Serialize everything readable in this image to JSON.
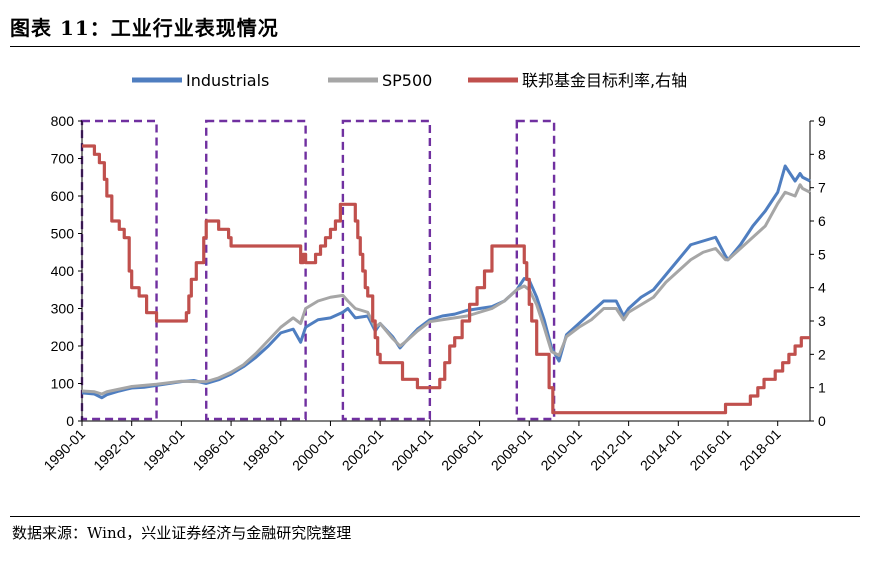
{
  "figure": {
    "title": "图表 11：工业行业表现情况",
    "source": "数据来源：Wind，兴业证券经济与金融研究院整理"
  },
  "chart_data": {
    "type": "line",
    "legend_position": "top",
    "grid": false,
    "x_range": [
      1990.0,
      2019.3
    ],
    "x_ticks": [
      "1990-01",
      "1992-01",
      "1994-01",
      "1996-01",
      "1998-01",
      "2000-01",
      "2002-01",
      "2004-01",
      "2006-01",
      "2008-01",
      "2010-01",
      "2012-01",
      "2014-01",
      "2016-01",
      "2018-01"
    ],
    "y_left": {
      "range": [
        0,
        800
      ],
      "ticks": [
        0,
        100,
        200,
        300,
        400,
        500,
        600,
        700,
        800
      ]
    },
    "y_right": {
      "range": [
        0,
        9
      ],
      "ticks": [
        0,
        1,
        2,
        3,
        4,
        5,
        6,
        7,
        8,
        9
      ]
    },
    "colors": {
      "industrials": "#4F7EC0",
      "sp500": "#A6A6A6",
      "fed": "#C0504D",
      "box": "#7030A0"
    },
    "series": [
      {
        "name": "Industrials",
        "axis": "left",
        "x": [
          1990.0,
          1990.5,
          1990.8,
          1991.0,
          1991.5,
          1992.0,
          1992.5,
          1993.0,
          1993.5,
          1994.0,
          1994.5,
          1995.0,
          1995.5,
          1996.0,
          1996.5,
          1997.0,
          1997.5,
          1998.0,
          1998.5,
          1998.8,
          1999.0,
          1999.5,
          2000.0,
          2000.5,
          2000.7,
          2001.0,
          2001.5,
          2001.8,
          2002.0,
          2002.5,
          2002.8,
          2003.0,
          2003.5,
          2004.0,
          2004.5,
          2005.0,
          2005.5,
          2006.0,
          2006.5,
          2007.0,
          2007.5,
          2007.8,
          2008.0,
          2008.3,
          2008.6,
          2008.9,
          2009.2,
          2009.5,
          2010.0,
          2010.5,
          2011.0,
          2011.5,
          2011.8,
          2012.0,
          2012.5,
          2013.0,
          2013.5,
          2014.0,
          2014.5,
          2015.0,
          2015.5,
          2015.9,
          2016.0,
          2016.5,
          2017.0,
          2017.5,
          2018.0,
          2018.3,
          2018.7,
          2018.9,
          2019.0,
          2019.3
        ],
        "y": [
          75,
          72,
          62,
          70,
          80,
          88,
          90,
          95,
          100,
          105,
          108,
          100,
          110,
          125,
          145,
          170,
          200,
          235,
          245,
          210,
          250,
          270,
          275,
          290,
          300,
          275,
          280,
          240,
          260,
          225,
          195,
          210,
          245,
          270,
          280,
          285,
          295,
          300,
          305,
          320,
          350,
          380,
          375,
          330,
          270,
          195,
          160,
          230,
          260,
          290,
          320,
          320,
          280,
          300,
          330,
          350,
          390,
          430,
          470,
          480,
          490,
          440,
          430,
          470,
          520,
          560,
          610,
          680,
          640,
          660,
          650,
          640
        ]
      },
      {
        "name": "SP500",
        "axis": "left",
        "x": [
          1990.0,
          1990.5,
          1990.8,
          1991.0,
          1991.5,
          1992.0,
          1992.5,
          1993.0,
          1993.5,
          1994.0,
          1994.5,
          1995.0,
          1995.5,
          1996.0,
          1996.5,
          1997.0,
          1997.5,
          1998.0,
          1998.5,
          1998.8,
          1999.0,
          1999.5,
          2000.0,
          2000.5,
          2000.7,
          2001.0,
          2001.5,
          2001.8,
          2002.0,
          2002.5,
          2002.8,
          2003.0,
          2003.5,
          2004.0,
          2004.5,
          2005.0,
          2005.5,
          2006.0,
          2006.5,
          2007.0,
          2007.5,
          2007.8,
          2008.0,
          2008.3,
          2008.6,
          2008.9,
          2009.2,
          2009.5,
          2010.0,
          2010.5,
          2011.0,
          2011.5,
          2011.8,
          2012.0,
          2012.5,
          2013.0,
          2013.5,
          2014.0,
          2014.5,
          2015.0,
          2015.5,
          2015.9,
          2016.0,
          2016.5,
          2017.0,
          2017.5,
          2018.0,
          2018.3,
          2018.7,
          2018.9,
          2019.0,
          2019.3
        ],
        "y": [
          80,
          78,
          72,
          78,
          85,
          92,
          95,
          98,
          102,
          106,
          105,
          105,
          115,
          130,
          150,
          180,
          215,
          250,
          275,
          260,
          300,
          320,
          330,
          335,
          320,
          300,
          290,
          250,
          260,
          220,
          200,
          210,
          240,
          265,
          270,
          275,
          280,
          290,
          300,
          320,
          350,
          360,
          350,
          310,
          250,
          185,
          175,
          225,
          250,
          270,
          300,
          300,
          270,
          290,
          310,
          330,
          370,
          400,
          430,
          450,
          460,
          430,
          430,
          460,
          490,
          520,
          580,
          610,
          600,
          630,
          620,
          610
        ]
      },
      {
        "name": "联邦基金目标利率,右轴",
        "axis": "right",
        "step": true,
        "x": [
          1990.0,
          1990.5,
          1990.7,
          1990.9,
          1991.0,
          1991.2,
          1991.5,
          1991.7,
          1991.9,
          1992.0,
          1992.3,
          1992.6,
          1993.0,
          1994.0,
          1994.2,
          1994.3,
          1994.4,
          1994.6,
          1994.9,
          1995.0,
          1995.5,
          1995.9,
          1996.0,
          1998.8,
          1998.9,
          1999.0,
          1999.4,
          1999.6,
          1999.8,
          2000.0,
          2000.2,
          2000.4,
          2000.9,
          2001.0,
          2001.1,
          2001.2,
          2001.3,
          2001.4,
          2001.5,
          2001.7,
          2001.8,
          2001.9,
          2002.0,
          2002.9,
          2003.5,
          2004.4,
          2004.6,
          2004.8,
          2005.0,
          2005.3,
          2005.6,
          2005.9,
          2006.2,
          2006.5,
          2007.6,
          2007.8,
          2007.9,
          2008.0,
          2008.1,
          2008.3,
          2008.8,
          2008.95,
          2015.9,
          2016.9,
          2017.2,
          2017.45,
          2017.9,
          2018.2,
          2018.45,
          2018.7,
          2018.95,
          2019.3
        ],
        "y": [
          8.25,
          8.0,
          7.75,
          7.25,
          6.75,
          6.0,
          5.75,
          5.5,
          4.5,
          4.0,
          3.75,
          3.25,
          3.0,
          3.0,
          3.25,
          3.75,
          4.25,
          4.75,
          5.5,
          6.0,
          5.75,
          5.5,
          5.25,
          4.75,
          5.0,
          4.75,
          5.0,
          5.25,
          5.5,
          5.75,
          6.0,
          6.5,
          6.5,
          6.0,
          5.5,
          5.0,
          4.5,
          4.0,
          3.75,
          3.0,
          2.5,
          2.0,
          1.75,
          1.25,
          1.0,
          1.25,
          1.75,
          2.25,
          2.5,
          3.0,
          3.5,
          4.0,
          4.5,
          5.25,
          5.25,
          4.75,
          4.25,
          3.5,
          3.0,
          2.0,
          1.0,
          0.25,
          0.5,
          0.75,
          1.0,
          1.25,
          1.5,
          1.75,
          2.0,
          2.25,
          2.5,
          2.5
        ]
      }
    ],
    "boxes_x": [
      [
        1990.0,
        1993.0
      ],
      [
        1995.0,
        1999.0
      ],
      [
        2000.5,
        2004.0
      ],
      [
        2007.5,
        2009.0
      ]
    ]
  }
}
